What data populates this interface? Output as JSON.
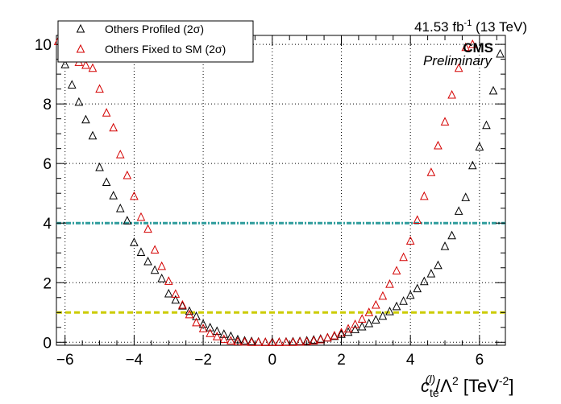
{
  "chart_data": {
    "type": "scatter",
    "xlabel": "c_te^(l)/Λ^2 [TeV^-2]",
    "xlabel_parts": {
      "c": "c",
      "sub": "te",
      "sup": "(l)",
      "middle": "/Λ",
      "pow": "2",
      "unit_open": " [TeV",
      "unit_pow": "-2",
      "unit_close": "]"
    },
    "ylabel": "",
    "xlim": [
      -6.25,
      6.75
    ],
    "ylim": [
      -0.1,
      10.3
    ],
    "x_ticks": [
      -6,
      -4,
      -2,
      0,
      2,
      4,
      6
    ],
    "x_tick_labels": [
      "−6",
      "−4",
      "−2",
      "0",
      "2",
      "4",
      "6"
    ],
    "y_ticks": [
      0,
      2,
      4,
      6,
      8,
      10
    ],
    "y_tick_labels": [
      "0",
      "2",
      "4",
      "6",
      "8",
      "10"
    ],
    "grid": true,
    "legend_placement": "top-left",
    "annotations": {
      "lumi_main": "41.53 fb",
      "lumi_sup": "-1",
      "lumi_tail": " (13 TeV)",
      "experiment": "CMS",
      "status": "Preliminary"
    },
    "reference_lines": [
      {
        "y": 4.0,
        "color": "#2e9c9c",
        "style": "dash-dot"
      },
      {
        "y": 1.0,
        "color": "#cccc00",
        "style": "dashed"
      }
    ],
    "series": [
      {
        "name": "Others Profiled (2σ)",
        "color": "#000000",
        "marker": "open-triangle",
        "x": [
          -6.0,
          -5.8,
          -5.6,
          -5.4,
          -5.2,
          -5.0,
          -4.8,
          -4.6,
          -4.4,
          -4.2,
          -4.0,
          -3.8,
          -3.6,
          -3.4,
          -3.2,
          -3.0,
          -2.8,
          -2.6,
          -2.4,
          -2.2,
          -2.0,
          -1.8,
          -1.6,
          -1.4,
          -1.2,
          -1.0,
          -0.8,
          -0.6,
          -0.4,
          -0.2,
          0.0,
          0.2,
          0.4,
          0.6,
          0.8,
          1.0,
          1.2,
          1.4,
          1.6,
          1.8,
          2.0,
          2.2,
          2.4,
          2.6,
          2.8,
          3.0,
          3.2,
          3.4,
          3.6,
          3.8,
          4.0,
          4.2,
          4.4,
          4.6,
          4.8,
          5.0,
          5.2,
          5.4,
          5.6,
          5.8,
          6.0,
          6.2,
          6.4,
          6.6
        ],
        "y": [
          9.32,
          8.64,
          8.06,
          7.47,
          6.93,
          5.87,
          5.37,
          4.92,
          4.49,
          4.08,
          3.35,
          3.02,
          2.71,
          2.42,
          2.14,
          1.63,
          1.42,
          1.22,
          1.04,
          0.87,
          0.61,
          0.49,
          0.37,
          0.27,
          0.2,
          0.09,
          0.05,
          0.03,
          0.01,
          0.0,
          0.0,
          0.0,
          0.01,
          0.02,
          0.03,
          0.05,
          0.08,
          0.11,
          0.15,
          0.2,
          0.27,
          0.34,
          0.43,
          0.52,
          0.63,
          0.75,
          0.88,
          1.03,
          1.2,
          1.38,
          1.58,
          1.8,
          2.04,
          2.3,
          2.58,
          3.22,
          3.58,
          4.4,
          4.86,
          5.93,
          6.56,
          7.28,
          8.44,
          9.68
        ]
      },
      {
        "name": "Others Fixed to SM (2σ)",
        "color": "#d40000",
        "marker": "open-triangle",
        "x": [
          -6.2,
          -6.0,
          -5.8,
          -5.6,
          -5.4,
          -5.2,
          -5.0,
          -4.8,
          -4.6,
          -4.4,
          -4.2,
          -4.0,
          -3.8,
          -3.6,
          -3.4,
          -3.2,
          -3.0,
          -2.8,
          -2.6,
          -2.4,
          -2.2,
          -2.0,
          -1.8,
          -1.6,
          -1.4,
          -1.2,
          -1.0,
          -0.8,
          -0.6,
          -0.4,
          -0.2,
          0.0,
          0.2,
          0.4,
          0.6,
          0.8,
          1.0,
          1.2,
          1.4,
          1.6,
          1.8,
          2.0,
          2.2,
          2.4,
          2.6,
          2.8,
          3.0,
          3.2,
          3.4,
          3.6,
          3.8,
          4.0,
          4.2,
          4.4,
          4.6,
          4.8,
          5.0,
          5.2,
          5.4,
          5.6,
          5.8
        ],
        "y": [
          10.1,
          9.8,
          9.6,
          9.4,
          9.3,
          9.2,
          8.5,
          7.7,
          7.2,
          6.3,
          5.6,
          4.9,
          4.2,
          3.8,
          3.1,
          2.55,
          2.05,
          1.62,
          1.25,
          0.93,
          0.66,
          0.46,
          0.3,
          0.19,
          0.1,
          0.05,
          0.02,
          0.01,
          0.0,
          0.0,
          0.0,
          0.0,
          0.0,
          0.0,
          0.0,
          0.01,
          0.02,
          0.05,
          0.09,
          0.15,
          0.22,
          0.32,
          0.45,
          0.6,
          0.78,
          1.0,
          1.25,
          1.55,
          1.95,
          2.4,
          2.85,
          3.4,
          4.1,
          4.9,
          5.7,
          6.6,
          7.4,
          8.3,
          9.2,
          9.9,
          10.0
        ]
      }
    ]
  }
}
